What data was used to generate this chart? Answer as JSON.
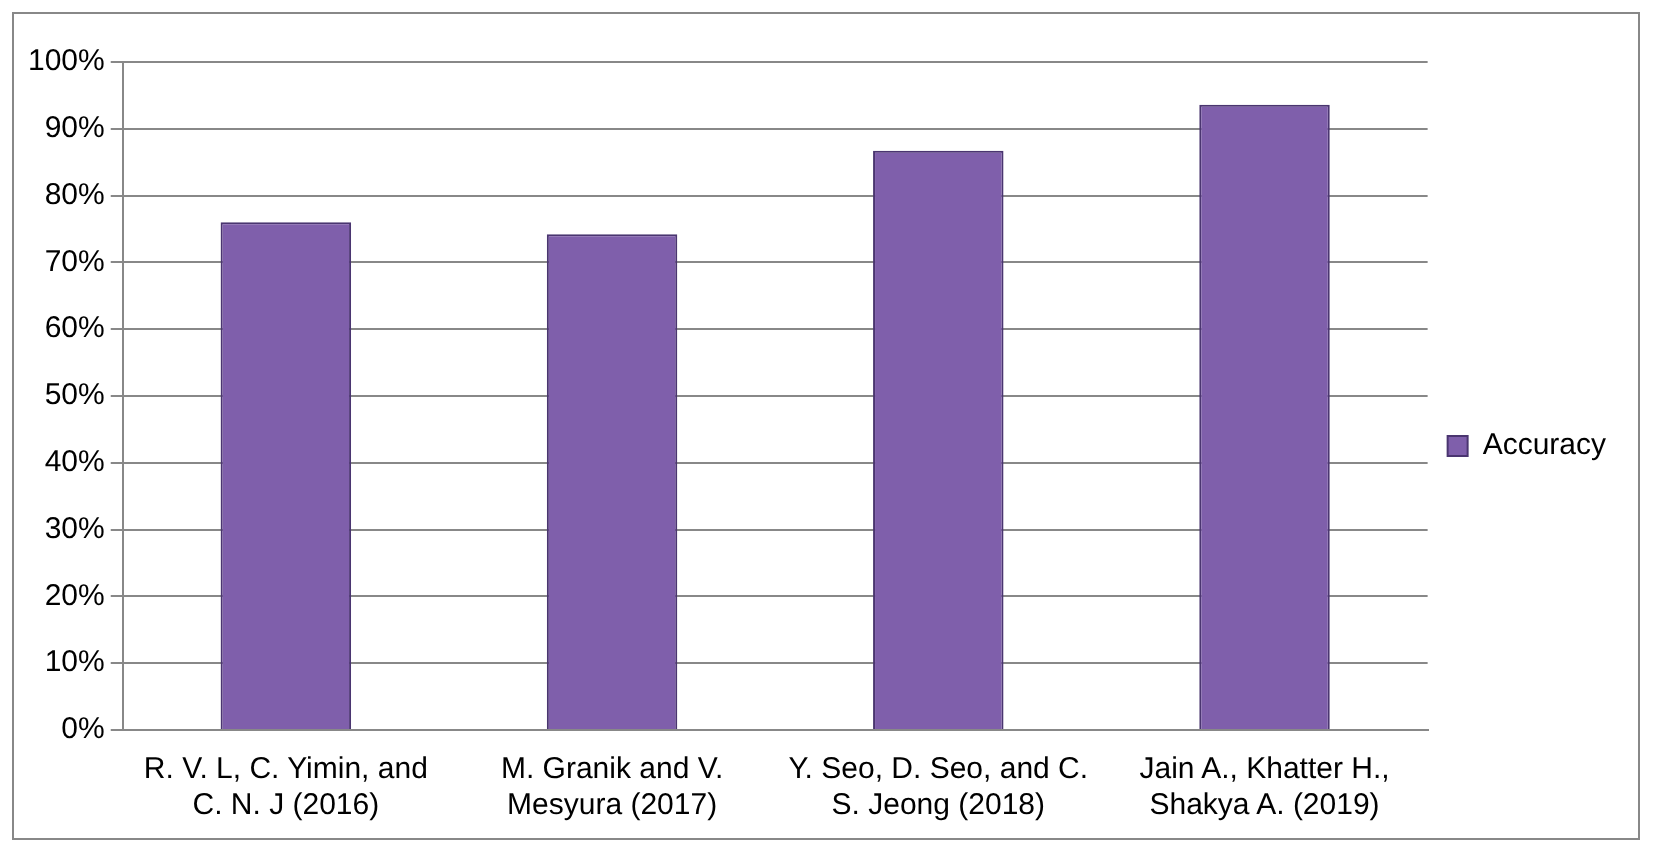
{
  "chart_data": {
    "type": "bar",
    "categories": [
      "R. V. L, C. Yimin, and C. N. J (2016)",
      "M. Granik and V. Mesyura (2017)",
      "Y. Seo, D. Seo, and C. S. Jeong (2018)",
      "Jain A., Khatter H., Shakya A. (2019)"
    ],
    "series": [
      {
        "name": "Accuracy",
        "color": "#7f5fab",
        "values": [
          76,
          74.2,
          86.7,
          93.6
        ]
      }
    ],
    "ylim": [
      0,
      100
    ],
    "yticks": [
      {
        "value": 0,
        "label": "0%"
      },
      {
        "value": 10,
        "label": "10%"
      },
      {
        "value": 20,
        "label": "20%"
      },
      {
        "value": 30,
        "label": "30%"
      },
      {
        "value": 40,
        "label": "40%"
      },
      {
        "value": 50,
        "label": "50%"
      },
      {
        "value": 60,
        "label": "60%"
      },
      {
        "value": 70,
        "label": "70%"
      },
      {
        "value": 80,
        "label": "80%"
      },
      {
        "value": 90,
        "label": "90%"
      },
      {
        "value": 100,
        "label": "100%"
      }
    ],
    "grid": "y",
    "legend": "right"
  }
}
